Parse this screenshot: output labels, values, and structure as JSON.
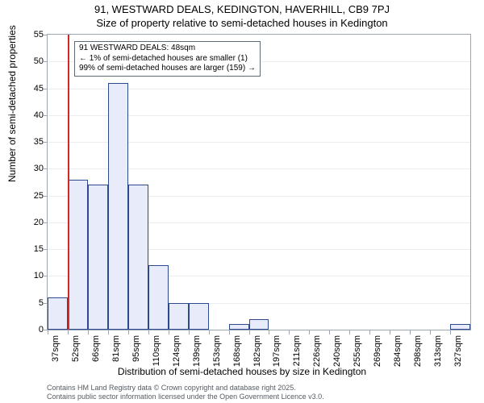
{
  "titles": {
    "line1": "91, WESTWARD DEALS, KEDINGTON, HAVERHILL, CB9 7PJ",
    "line2": "Size of property relative to semi-detached houses in Kedington"
  },
  "axes": {
    "ylabel": "Number of semi-detached properties",
    "xlabel": "Distribution of semi-detached houses by size in Kedington",
    "ylim": [
      0,
      55
    ],
    "ytick_step": 5,
    "xticks": [
      "37sqm",
      "52sqm",
      "66sqm",
      "81sqm",
      "95sqm",
      "110sqm",
      "124sqm",
      "139sqm",
      "153sqm",
      "168sqm",
      "182sqm",
      "197sqm",
      "211sqm",
      "226sqm",
      "240sqm",
      "255sqm",
      "269sqm",
      "284sqm",
      "298sqm",
      "313sqm",
      "327sqm"
    ]
  },
  "style": {
    "bar_fill": "#e8ecfa",
    "bar_border": "#2e4a8f",
    "grid_color": "#e9edf1",
    "axis_color": "#9aa6b2",
    "reference_color": "#d62728",
    "background": "#ffffff",
    "title_fontsize": 13,
    "label_fontsize": 12,
    "tick_fontsize": 11,
    "anno_fontsize": 10,
    "footer_fontsize": 9
  },
  "bars": {
    "values": [
      6,
      28,
      27,
      46,
      27,
      12,
      5,
      5,
      0,
      1,
      2,
      0,
      0,
      0,
      0,
      0,
      0,
      0,
      0,
      0,
      1
    ],
    "count": 21
  },
  "reference": {
    "bin_index": 1,
    "position_in_bin": 0.0
  },
  "annotation": {
    "line1": "91 WESTWARD DEALS: 48sqm",
    "line2": "← 1% of semi-detached houses are smaller (1)",
    "line3": "99% of semi-detached houses are larger (159) →"
  },
  "footer": {
    "line1": "Contains HM Land Registry data © Crown copyright and database right 2025.",
    "line2": "Contains public sector information licensed under the Open Government Licence v3.0."
  }
}
